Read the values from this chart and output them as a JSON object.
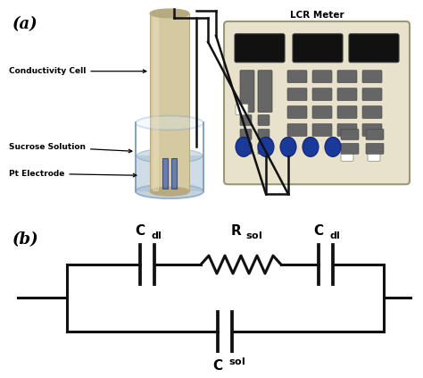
{
  "title_a": "(a)",
  "title_b": "(b)",
  "label_conductivity": "Conductivity Cell",
  "label_sucrose": "Sucrose Solution",
  "label_pt": "Pt Electrode",
  "label_lcr": "LCR Meter",
  "bg_color": "#ffffff",
  "beige_rod": "#d4c9a0",
  "beige_rod_light": "#e8e0c0",
  "beige_rod_dark": "#b8aa80",
  "blue_solution": "#a8bfd0",
  "blue_solution_alpha": 0.55,
  "beaker_edge": "#7799bb",
  "lcr_body": "#e8e2cc",
  "lcr_edge": "#999977",
  "lcr_screen": "#111111",
  "lcr_btn_gray": "#666666",
  "lcr_btn_blue": "#1a3a99",
  "lcr_btn_white": "#ffffff",
  "wire_color": "#111111",
  "line_color": "#111111",
  "lw_wire": 1.8,
  "lw_circuit": 2.2
}
